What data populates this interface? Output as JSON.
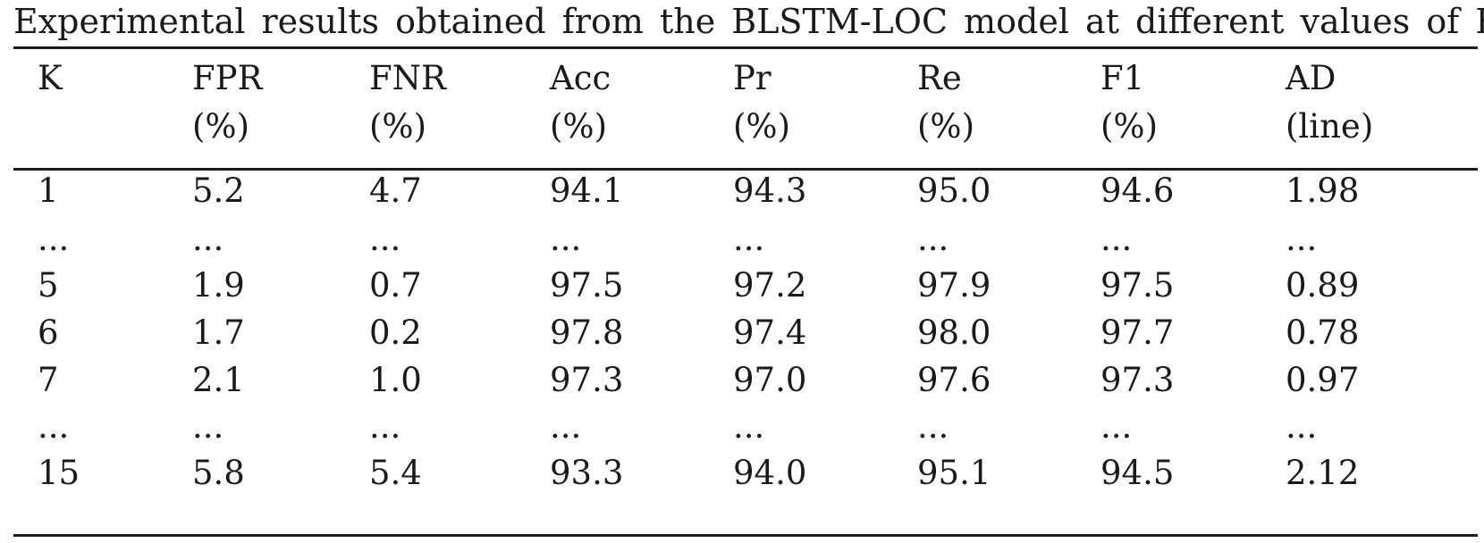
{
  "caption": "Experimental results obtained from the BLSTM-LOC model at different values of K.",
  "columns": [
    {
      "name": "K",
      "unit": ""
    },
    {
      "name": "FPR",
      "unit": "(%)"
    },
    {
      "name": "FNR",
      "unit": "(%)"
    },
    {
      "name": "Acc",
      "unit": "(%)"
    },
    {
      "name": "Pr",
      "unit": "(%)"
    },
    {
      "name": "Re",
      "unit": "(%)"
    },
    {
      "name": "F1",
      "unit": "(%)"
    },
    {
      "name": "AD",
      "unit": "(line)"
    }
  ],
  "rows": [
    [
      "1",
      "5.2",
      "4.7",
      "94.1",
      "94.3",
      "95.0",
      "94.6",
      "1.98"
    ],
    [
      "...",
      "...",
      "...",
      "...",
      "...",
      "...",
      "...",
      "..."
    ],
    [
      "5",
      "1.9",
      "0.7",
      "97.5",
      "97.2",
      "97.9",
      "97.5",
      "0.89"
    ],
    [
      "6",
      "1.7",
      "0.2",
      "97.8",
      "97.4",
      "98.0",
      "97.7",
      "0.78"
    ],
    [
      "7",
      "2.1",
      "1.0",
      "97.3",
      "97.0",
      "97.6",
      "97.3",
      "0.97"
    ],
    [
      "...",
      "...",
      "...",
      "...",
      "...",
      "...",
      "...",
      "..."
    ],
    [
      "15",
      "5.8",
      "5.4",
      "93.3",
      "94.0",
      "95.1",
      "94.5",
      "2.12"
    ]
  ]
}
